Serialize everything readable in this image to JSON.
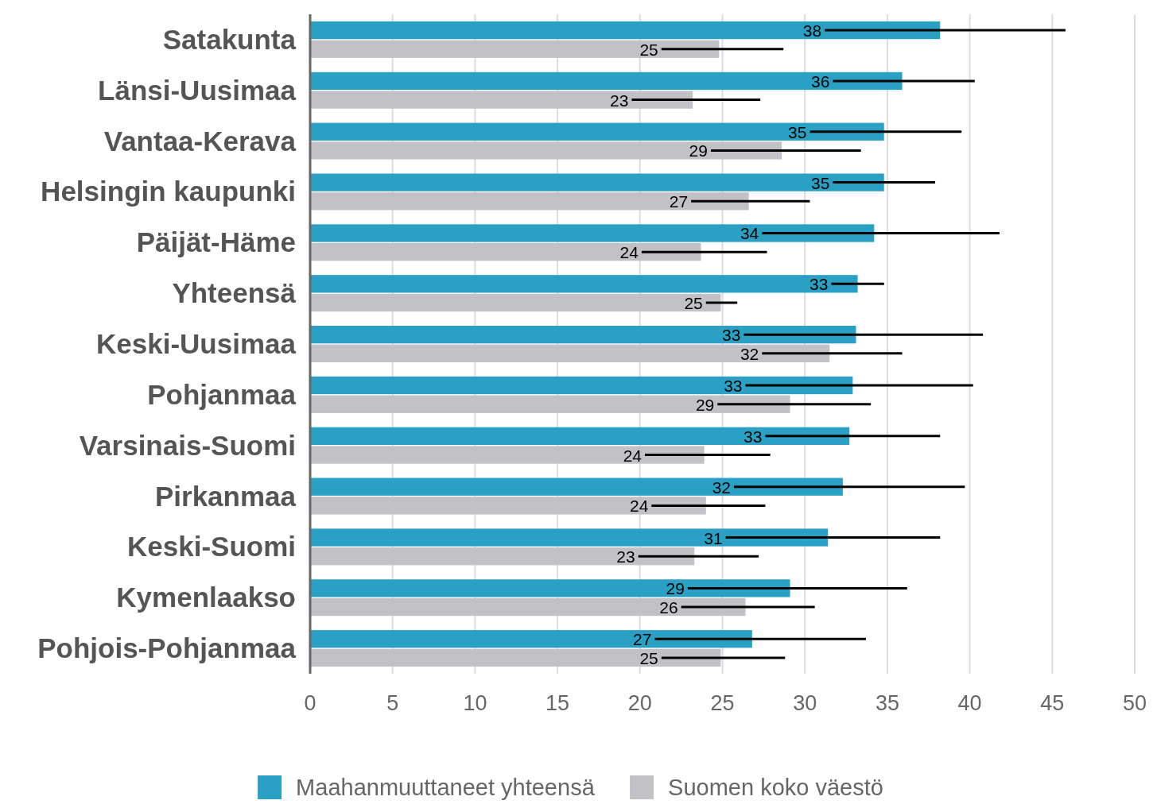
{
  "chart_data": {
    "type": "bar",
    "orientation": "horizontal",
    "categories": [
      "Satakunta",
      "Länsi-Uusimaa",
      "Vantaa-Kerava",
      "Helsingin kaupunki",
      "Päijät-Häme",
      "Yhteensä",
      "Keski-Uusimaa",
      "Pohjanmaa",
      "Varsinais-Suomi",
      "Pirkanmaa",
      "Keski-Suomi",
      "Kymenlaakso",
      "Pohjois-Pohjanmaa"
    ],
    "series": [
      {
        "name": "Maahanmuuttaneet yhteensä",
        "color": "#29a0c4",
        "values": [
          38.2,
          35.9,
          34.8,
          34.8,
          34.2,
          33.2,
          33.1,
          32.9,
          32.7,
          32.3,
          31.4,
          29.1,
          26.8
        ],
        "value_labels": [
          "38",
          "36",
          "35",
          "35",
          "34",
          "33",
          "33",
          "33",
          "33",
          "32",
          "31",
          "29",
          "27"
        ],
        "errors": [
          [
            31.2,
            45.8
          ],
          [
            31.7,
            40.3
          ],
          [
            30.3,
            39.5
          ],
          [
            31.7,
            37.9
          ],
          [
            27.4,
            41.8
          ],
          [
            31.6,
            34.8
          ],
          [
            26.3,
            40.8
          ],
          [
            26.4,
            40.2
          ],
          [
            27.6,
            38.2
          ],
          [
            25.7,
            39.7
          ],
          [
            25.2,
            38.2
          ],
          [
            22.9,
            36.2
          ],
          [
            20.9,
            33.7
          ]
        ]
      },
      {
        "name": "Suomen koko väestö",
        "color": "#c2c1c6",
        "values": [
          24.8,
          23.2,
          28.6,
          26.6,
          23.7,
          24.9,
          31.5,
          29.1,
          23.9,
          24.0,
          23.3,
          26.4,
          24.9
        ],
        "value_labels": [
          "25",
          "23",
          "29",
          "27",
          "24",
          "25",
          "32",
          "29",
          "24",
          "24",
          "23",
          "26",
          "25"
        ],
        "errors": [
          [
            21.3,
            28.7
          ],
          [
            19.5,
            27.3
          ],
          [
            24.3,
            33.4
          ],
          [
            23.1,
            30.3
          ],
          [
            20.1,
            27.7
          ],
          [
            24.0,
            25.9
          ],
          [
            27.4,
            35.9
          ],
          [
            24.7,
            34.0
          ],
          [
            20.3,
            27.9
          ],
          [
            20.7,
            27.6
          ],
          [
            19.9,
            27.2
          ],
          [
            22.5,
            30.6
          ],
          [
            21.3,
            28.8
          ]
        ]
      }
    ],
    "xlim": [
      0,
      50
    ],
    "xticks": [
      0,
      5,
      10,
      15,
      20,
      25,
      30,
      35,
      40,
      45,
      50
    ],
    "grid": "x",
    "legend": "bottom"
  }
}
